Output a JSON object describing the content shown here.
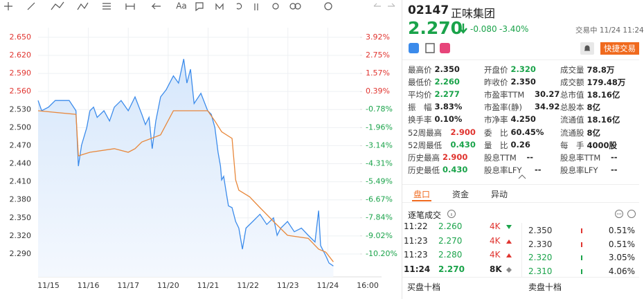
{
  "toolbar": {
    "text_tool": "Aa"
  },
  "chart_data": {
    "type": "line",
    "xlim": [
      -0.26,
      8
    ],
    "xticks": [
      {
        "value": 0,
        "label": "11/15"
      },
      {
        "value": 1,
        "label": "11/16"
      },
      {
        "value": 2,
        "label": "11/17"
      },
      {
        "value": 3,
        "label": "11/20"
      },
      {
        "value": 4,
        "label": "11/21"
      },
      {
        "value": 5,
        "label": "11/22"
      },
      {
        "value": 6,
        "label": "11/23"
      },
      {
        "value": 7,
        "label": "11/24"
      },
      {
        "value": 8,
        "label": "16:00"
      }
    ],
    "ylim": [
      2.252,
      2.666
    ],
    "yticks": [
      {
        "value": 2.65,
        "label": "2.650"
      },
      {
        "value": 2.62,
        "label": "2.620"
      },
      {
        "value": 2.59,
        "label": "2.590"
      },
      {
        "value": 2.56,
        "label": "2.560"
      },
      {
        "value": 2.53,
        "label": "2.530"
      },
      {
        "value": 2.5,
        "label": "2.500"
      },
      {
        "value": 2.47,
        "label": "2.470"
      },
      {
        "value": 2.44,
        "label": "2.440"
      },
      {
        "value": 2.41,
        "label": "2.410"
      },
      {
        "value": 2.38,
        "label": "2.380"
      },
      {
        "value": 2.35,
        "label": "2.350"
      },
      {
        "value": 2.32,
        "label": "2.320"
      },
      {
        "value": 2.29,
        "label": "2.290"
      }
    ],
    "y2lim": [
      -11.69,
      4.55
    ],
    "y2ticks": [
      {
        "value": 3.92,
        "label": "3.92%"
      },
      {
        "value": 2.75,
        "label": "2.75%"
      },
      {
        "value": 1.57,
        "label": "1.57%"
      },
      {
        "value": 0.39,
        "label": "0.39%"
      },
      {
        "value": -0.78,
        "label": "-0.78%"
      },
      {
        "value": -1.96,
        "label": "-1.96%"
      },
      {
        "value": -3.14,
        "label": "-3.14%"
      },
      {
        "value": -4.31,
        "label": "-4.31%"
      },
      {
        "value": -5.49,
        "label": "-5.49%"
      },
      {
        "value": -6.67,
        "label": "-6.67%"
      },
      {
        "value": -7.84,
        "label": "-7.84%"
      },
      {
        "value": -9.02,
        "label": "-9.02%"
      },
      {
        "value": -10.2,
        "label": "-10.20%"
      }
    ],
    "grid": true,
    "up_color": "#e0342f",
    "down_color": "#1aa34a",
    "series": [
      {
        "color": "#3b8beb",
        "fill": true,
        "x": [
          -0.26,
          -0.17,
          0.0,
          0.17,
          0.52,
          0.69,
          0.75,
          0.83,
          0.96,
          1.04,
          1.13,
          1.22,
          1.39,
          1.53,
          1.65,
          1.82,
          2.0,
          2.17,
          2.34,
          2.43,
          2.52,
          2.6,
          2.69,
          2.81,
          2.95,
          3.13,
          3.26,
          3.39,
          3.47,
          3.56,
          3.65,
          3.82,
          3.99,
          4.08,
          4.17,
          4.25,
          4.31,
          4.34,
          4.39,
          4.46,
          4.51,
          4.6,
          4.69,
          4.77,
          4.86,
          4.95,
          5.12,
          5.3,
          5.47,
          5.64,
          5.73,
          5.82,
          5.99,
          6.16,
          6.34,
          6.51,
          6.68,
          6.77,
          6.82,
          6.95,
          7.03,
          7.14
        ],
        "values": [
          2.545,
          2.528,
          2.534,
          2.545,
          2.545,
          2.528,
          2.436,
          2.471,
          2.5,
          2.528,
          2.534,
          2.517,
          2.528,
          2.511,
          2.534,
          2.545,
          2.528,
          2.551,
          2.522,
          2.505,
          2.517,
          2.465,
          2.511,
          2.551,
          2.563,
          2.586,
          2.574,
          2.614,
          2.574,
          2.597,
          2.54,
          2.557,
          2.528,
          2.522,
          2.5,
          2.459,
          2.436,
          2.413,
          2.419,
          2.39,
          2.37,
          2.367,
          2.344,
          2.333,
          2.298,
          2.333,
          2.344,
          2.356,
          2.339,
          2.35,
          2.321,
          2.333,
          2.344,
          2.327,
          2.333,
          2.321,
          2.31,
          2.362,
          2.304,
          2.287,
          2.275,
          2.27
        ]
      },
      {
        "color": "#e8873a",
        "fill": false,
        "x": [
          -0.26,
          0.69,
          0.75,
          1.04,
          1.65,
          2.0,
          2.17,
          2.34,
          2.81,
          3.13,
          3.99,
          4.17,
          4.34,
          4.6,
          4.69,
          4.77,
          5.04,
          5.3,
          5.64,
          5.99,
          6.51,
          6.77,
          6.95,
          7.14
        ],
        "values": [
          2.528,
          2.522,
          2.453,
          2.459,
          2.465,
          2.459,
          2.465,
          2.476,
          2.488,
          2.528,
          2.528,
          2.511,
          2.493,
          2.482,
          2.413,
          2.396,
          2.385,
          2.367,
          2.344,
          2.321,
          2.316,
          2.298,
          2.293,
          2.277
        ]
      }
    ]
  },
  "header": {
    "code": "02147",
    "name": "正味集团",
    "price": "2.270",
    "change": "-0.080",
    "change_pct": "-3.40%",
    "status": "交易中 11/24 11:24",
    "trade_button": "快捷交易"
  },
  "stats": [
    [
      {
        "label": "最高价",
        "value": "2.350",
        "color": "#222"
      },
      {
        "label": "开盘价",
        "value": "2.320",
        "color": "#1aa34a"
      },
      {
        "label": "成交量",
        "value": "78.8万",
        "color": "#222"
      }
    ],
    [
      {
        "label": "最低价",
        "value": "2.260",
        "color": "#1aa34a"
      },
      {
        "label": "昨收价",
        "value": "2.350",
        "color": "#222"
      },
      {
        "label": "成交额",
        "value": "179.48万",
        "color": "#222"
      }
    ],
    [
      {
        "label": "平均价",
        "value": "2.277",
        "color": "#1aa34a"
      },
      {
        "label": "市盈率TTM",
        "value": "30.27",
        "color": "#222"
      },
      {
        "label": "总市值",
        "value": "18.16亿",
        "color": "#222"
      }
    ],
    [
      {
        "label": "振　幅",
        "value": "3.83%",
        "color": "#222"
      },
      {
        "label": "市盈率(静)",
        "value": "34.92",
        "color": "#222"
      },
      {
        "label": "总股本",
        "value": "8亿",
        "color": "#222"
      }
    ],
    [
      {
        "label": "换手率",
        "value": "0.10%",
        "color": "#222"
      },
      {
        "label": "市净率",
        "value": "4.250",
        "color": "#222"
      },
      {
        "label": "流通值",
        "value": "18.16亿",
        "color": "#222"
      }
    ],
    [
      {
        "label": "52周最高",
        "value": "2.900",
        "color": "#e0342f"
      },
      {
        "label": "委　比",
        "value": "60.45%",
        "color": "#222"
      },
      {
        "label": "流通股",
        "value": "8亿",
        "color": "#222"
      }
    ],
    [
      {
        "label": "52周最低",
        "value": "0.430",
        "color": "#1aa34a"
      },
      {
        "label": "量　比",
        "value": "0.26",
        "color": "#222"
      },
      {
        "label": "每　手",
        "value": "4000股",
        "color": "#222"
      }
    ],
    [
      {
        "label": "历史最高",
        "value": "2.900",
        "color": "#e0342f"
      },
      {
        "label": "股息TTM",
        "value": "--",
        "color": "#222"
      },
      {
        "label": "股息率TTM",
        "value": "--",
        "color": "#222"
      }
    ],
    [
      {
        "label": "历史最低",
        "value": "0.430",
        "color": "#1aa34a"
      },
      {
        "label": "股息率LFY",
        "value": "--",
        "color": "#222"
      },
      {
        "label": "股息率LFY",
        "value": "--",
        "color": "#222"
      }
    ]
  ],
  "tabs": [
    "盘口",
    "资金",
    "异动"
  ],
  "trades": {
    "title": "逐笔成交",
    "rows": [
      [
        "11:22",
        "2.260",
        "4K"
      ],
      [
        "11:23",
        "2.270",
        "4K"
      ],
      [
        "11:23",
        "2.280",
        "4K"
      ],
      [
        "11:24",
        "2.270",
        "8K"
      ]
    ]
  },
  "order_book": [
    [
      "2.350",
      "0.51%"
    ],
    [
      "2.330",
      "0.51%"
    ],
    [
      "2.320",
      "3.05%"
    ],
    [
      "2.310",
      "4.06%"
    ]
  ],
  "footer": [
    "买盘十档",
    "卖盘十档"
  ]
}
